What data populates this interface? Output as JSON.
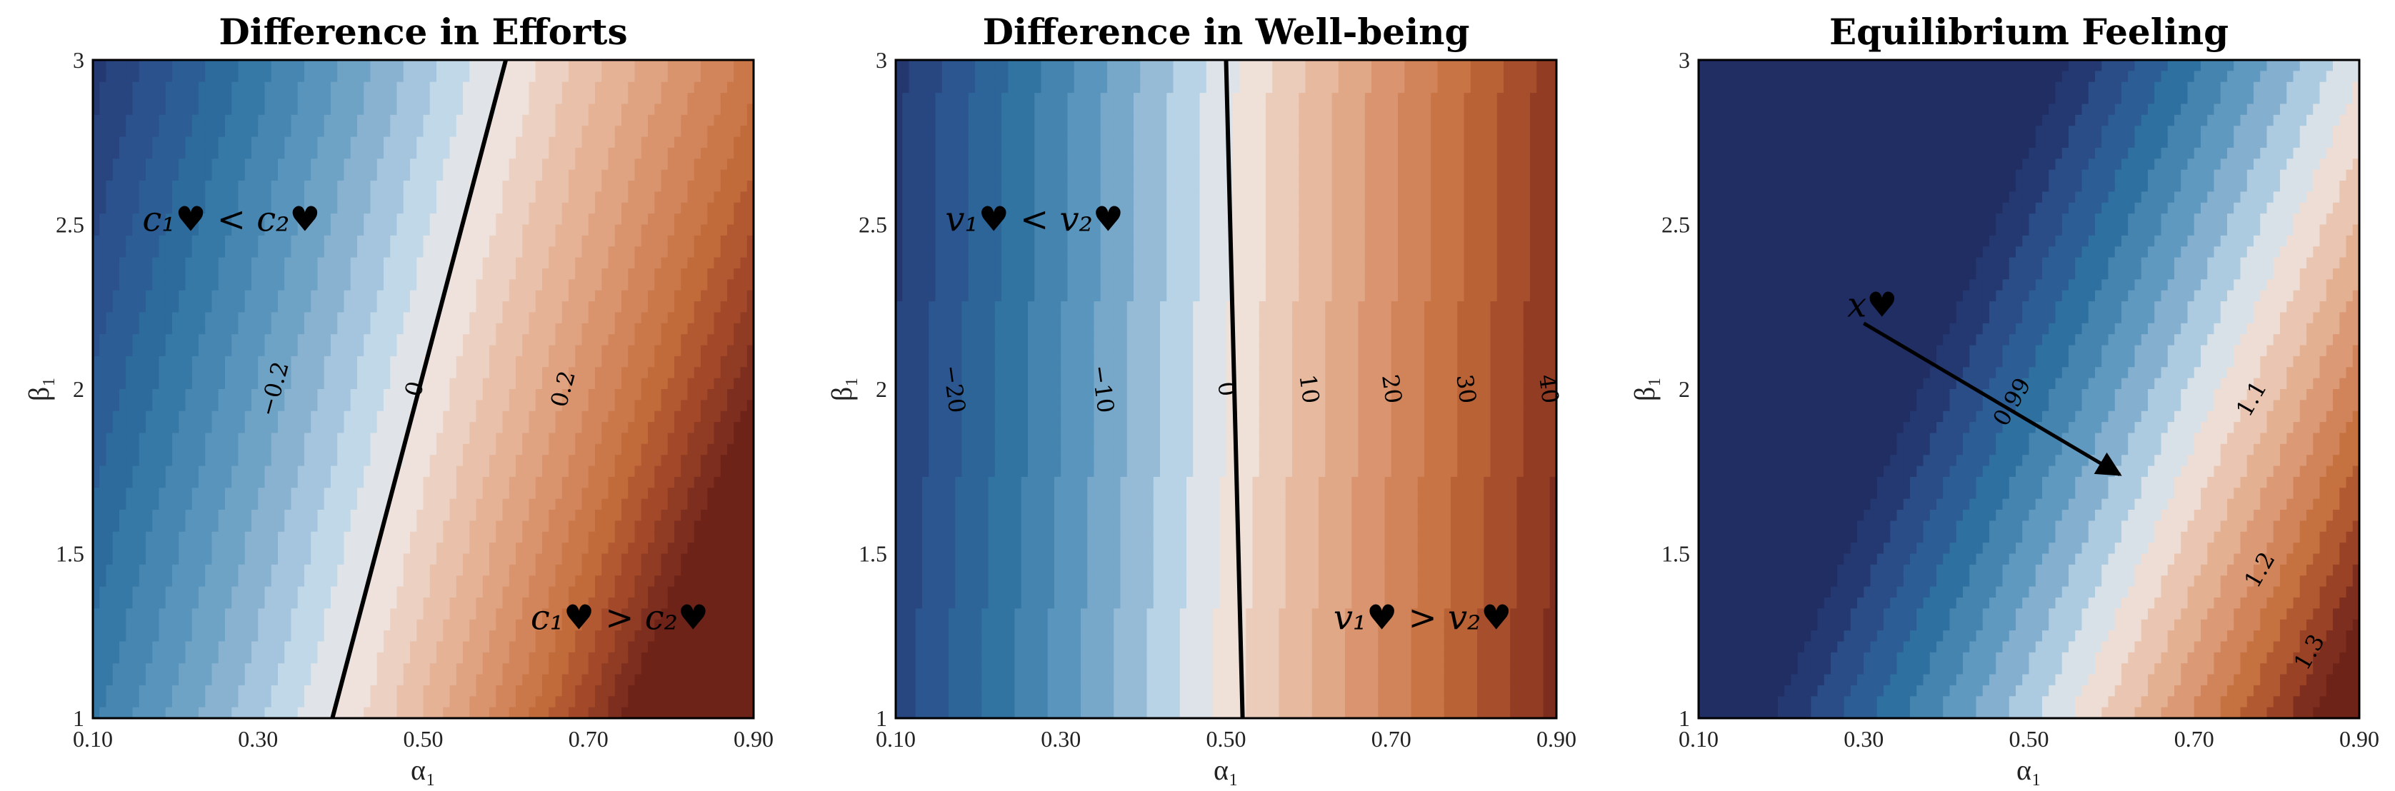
{
  "chart_data": [
    {
      "type": "contour",
      "title": "Difference in Efforts",
      "xlabel": "α₁",
      "ylabel": "β₁",
      "xlim": [
        0.1,
        0.9
      ],
      "ylim": [
        1,
        3
      ],
      "x_ticks": [
        "0.10",
        "0.30",
        "0.50",
        "0.70",
        "0.90"
      ],
      "y_ticks": [
        "1",
        "1.5",
        "2",
        "2.5",
        "3"
      ],
      "colormap": "RdBu_r",
      "contour_labels": [
        "−0.2",
        "0",
        "0.2"
      ],
      "zero_contour": [
        [
          0.39,
          1.0
        ],
        [
          0.6,
          3.0
        ]
      ],
      "annotations": [
        {
          "text": "c₁♥ < c₂♥",
          "x": 0.16,
          "y": 2.48
        },
        {
          "text": "c₁♥ > c₂♥",
          "x": 0.63,
          "y": 1.27
        }
      ]
    },
    {
      "type": "contour",
      "title": "Difference in Well-being",
      "xlabel": "α₁",
      "ylabel": "β₁",
      "xlim": [
        0.1,
        0.9
      ],
      "ylim": [
        1,
        3
      ],
      "x_ticks": [
        "0.10",
        "0.30",
        "0.50",
        "0.70",
        "0.90"
      ],
      "y_ticks": [
        "1",
        "1.5",
        "2",
        "2.5",
        "3"
      ],
      "colormap": "RdBu_r",
      "contour_levels": [
        -20,
        -10,
        0,
        10,
        20,
        30,
        40
      ],
      "contour_labels": [
        "−20",
        "−10",
        "0",
        "10",
        "20",
        "30",
        "40"
      ],
      "zero_contour": [
        [
          0.5,
          3.0
        ],
        [
          0.52,
          1.0
        ]
      ],
      "annotations": [
        {
          "text": "v₁♥ < v₂♥",
          "x": 0.16,
          "y": 2.48
        },
        {
          "text": "v₁♥ > v₂♥",
          "x": 0.63,
          "y": 1.27
        }
      ]
    },
    {
      "type": "contour",
      "title": "Equilibrium Feeling",
      "xlabel": "α₁",
      "ylabel": "β₁",
      "xlim": [
        0.1,
        0.9
      ],
      "ylim": [
        1,
        3
      ],
      "x_ticks": [
        "0.10",
        "0.30",
        "0.50",
        "0.70",
        "0.90"
      ],
      "y_ticks": [
        "1",
        "1.5",
        "2",
        "2.5",
        "3"
      ],
      "colormap": "RdBu_r",
      "contour_labels": [
        "0.99",
        "1.1",
        "1.2",
        "1.3"
      ],
      "annotations": [
        {
          "text": "x♥",
          "x": 0.28,
          "y": 2.22
        }
      ],
      "arrow": {
        "from": [
          0.3,
          2.2
        ],
        "to": [
          0.61,
          1.74
        ]
      }
    }
  ]
}
